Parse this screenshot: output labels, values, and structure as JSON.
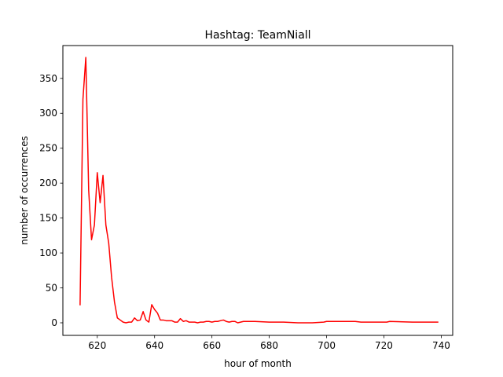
{
  "chart_data": {
    "type": "line",
    "title": "Hashtag: TeamNiall",
    "xlabel": "hour of month",
    "ylabel": "number of occurrences",
    "xlim": [
      608,
      744
    ],
    "ylim": [
      -18,
      397
    ],
    "xticks": [
      620,
      640,
      660,
      680,
      700,
      720,
      740
    ],
    "yticks": [
      0,
      50,
      100,
      150,
      200,
      250,
      300,
      350
    ],
    "grid": false,
    "series": [
      {
        "color": "#ff0000",
        "x": [
          614,
          615,
          616,
          617,
          618,
          619,
          620,
          621,
          622,
          623,
          624,
          625,
          626,
          627,
          628,
          629,
          630,
          631,
          632,
          633,
          634,
          635,
          636,
          637,
          638,
          639,
          640,
          641,
          642,
          643,
          644,
          645,
          646,
          647,
          648,
          649,
          650,
          651,
          652,
          653,
          654,
          655,
          656,
          657,
          658,
          659,
          660,
          661,
          662,
          663,
          664,
          665,
          666,
          667,
          668,
          669,
          670,
          671,
          675,
          680,
          685,
          690,
          695,
          699,
          700,
          705,
          710,
          712,
          715,
          721,
          722,
          730,
          739
        ],
        "y": [
          25,
          320,
          380,
          190,
          119,
          140,
          215,
          172,
          211,
          140,
          114,
          65,
          30,
          7,
          4,
          1,
          0,
          1,
          1,
          7,
          3,
          4,
          16,
          4,
          1,
          26,
          19,
          14,
          4,
          4,
          3,
          3,
          3,
          1,
          1,
          6,
          2,
          3,
          1,
          1,
          1,
          0,
          1,
          1,
          2,
          2,
          1,
          2,
          2,
          3,
          4,
          2,
          1,
          2,
          2,
          0,
          1,
          2,
          2,
          1,
          1,
          0,
          0,
          1,
          2,
          2,
          2,
          1,
          1,
          1,
          2,
          1,
          1
        ]
      }
    ]
  }
}
